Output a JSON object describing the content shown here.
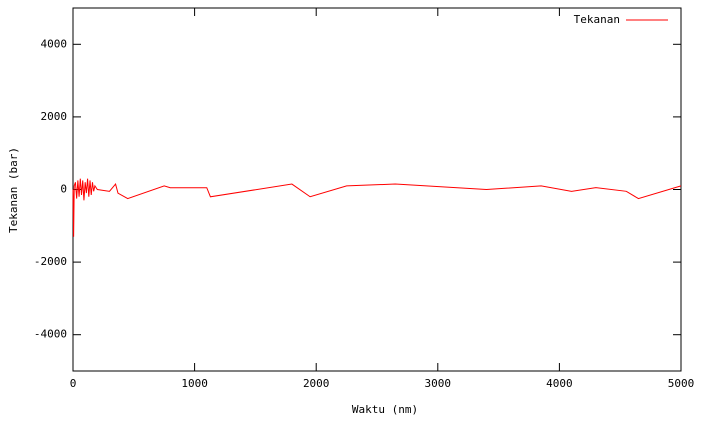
{
  "chart_data": {
    "type": "line",
    "xlabel": "Waktu (nm)",
    "ylabel": "Tekanan (bar)",
    "x": [
      0,
      5,
      10,
      20,
      30,
      40,
      50,
      60,
      70,
      80,
      90,
      100,
      110,
      120,
      130,
      140,
      150,
      160,
      170,
      180,
      200,
      300,
      350,
      370,
      450,
      750,
      800,
      1100,
      1130,
      1800,
      1950,
      2250,
      2650,
      3400,
      3850,
      4100,
      4300,
      4550,
      4650,
      5000
    ],
    "series": [
      {
        "name": "Tekanan",
        "color": "#ff0000",
        "values": [
          0,
          -1300,
          100,
          200,
          -250,
          250,
          -200,
          300,
          -150,
          250,
          -300,
          200,
          -100,
          300,
          -200,
          250,
          -150,
          200,
          -50,
          100,
          0,
          -50,
          150,
          -100,
          -250,
          100,
          50,
          50,
          -200,
          150,
          -200,
          100,
          150,
          0,
          100,
          -50,
          50,
          -50,
          -250,
          100
        ]
      }
    ],
    "xlim": [
      0,
      5000
    ],
    "xticks": [
      0,
      1000,
      2000,
      3000,
      4000,
      5000
    ],
    "ylim": [
      -5000,
      5000
    ],
    "yticks": [
      -4000,
      -2000,
      0,
      2000,
      4000
    ],
    "legend": "top-right"
  }
}
